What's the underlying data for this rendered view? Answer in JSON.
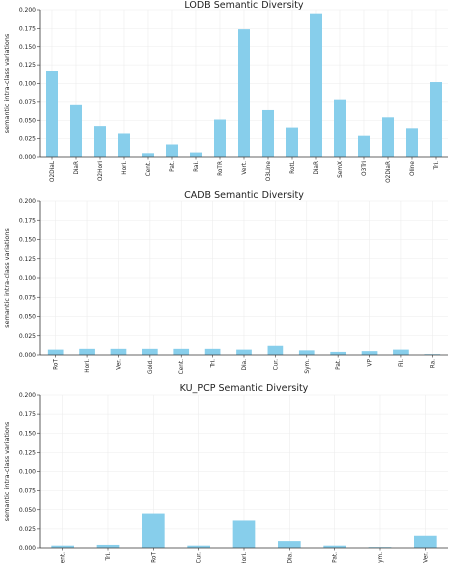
{
  "chart_data": [
    {
      "type": "bar",
      "title": "LODB Semantic Diversity",
      "xlabel": "",
      "ylabel": "semantic intra-class variations",
      "ylim": [
        0,
        0.2
      ],
      "yticks": [
        "0.000",
        "0.025",
        "0.050",
        "0.075",
        "0.100",
        "0.125",
        "0.150",
        "0.175",
        "0.200"
      ],
      "grid": true,
      "bar_color": "#87CEEB",
      "categories": [
        "O2DiaL",
        "DiaR",
        "O2Hori",
        "Hori.",
        "Cent.",
        "Pat.",
        "Rai.",
        "RoTR",
        "Vert.",
        "O3Line",
        "RotL",
        "DiaR",
        "SemX",
        "O3Tri",
        "O2DiaR",
        "Oline",
        "Tri."
      ],
      "values": [
        0.117,
        0.071,
        0.042,
        0.032,
        0.005,
        0.017,
        0.006,
        0.051,
        0.174,
        0.064,
        0.04,
        0.195,
        0.078,
        0.029,
        0.054,
        0.039,
        0.102
      ]
    },
    {
      "type": "bar",
      "title": "CADB Semantic Diversity",
      "xlabel": "",
      "ylabel": "semantic intra-class variations",
      "ylim": [
        0,
        0.2
      ],
      "yticks": [
        "0.000",
        "0.025",
        "0.050",
        "0.075",
        "0.100",
        "0.125",
        "0.150",
        "0.175",
        "0.200"
      ],
      "grid": true,
      "bar_color": "#87CEEB",
      "categories": [
        "RoT",
        "Hori.",
        "Ver.",
        "Gold.",
        "Cent.",
        "Tri.",
        "Dia.",
        "Cur.",
        "Sym.",
        "Pat.",
        "VP",
        "Fil.",
        "Ra."
      ],
      "values": [
        0.007,
        0.008,
        0.008,
        0.008,
        0.008,
        0.008,
        0.007,
        0.012,
        0.006,
        0.004,
        0.005,
        0.007,
        0.001
      ]
    },
    {
      "type": "bar",
      "title": "KU_PCP Semantic Diversity",
      "xlabel": "",
      "ylabel": "semantic intra-class variations",
      "ylim": [
        0,
        0.2
      ],
      "yticks": [
        "0.000",
        "0.025",
        "0.050",
        "0.075",
        "0.100",
        "0.125",
        "0.150",
        "0.175",
        "0.200"
      ],
      "grid": true,
      "bar_color": "#87CEEB",
      "categories": [
        "Cent.",
        "Tri.",
        "RoT",
        "Cur.",
        "Hori.",
        "Dia.",
        "Pat.",
        "Sym.",
        "Ver."
      ],
      "values": [
        0.003,
        0.004,
        0.045,
        0.003,
        0.036,
        0.009,
        0.003,
        0.001,
        0.016
      ]
    }
  ]
}
